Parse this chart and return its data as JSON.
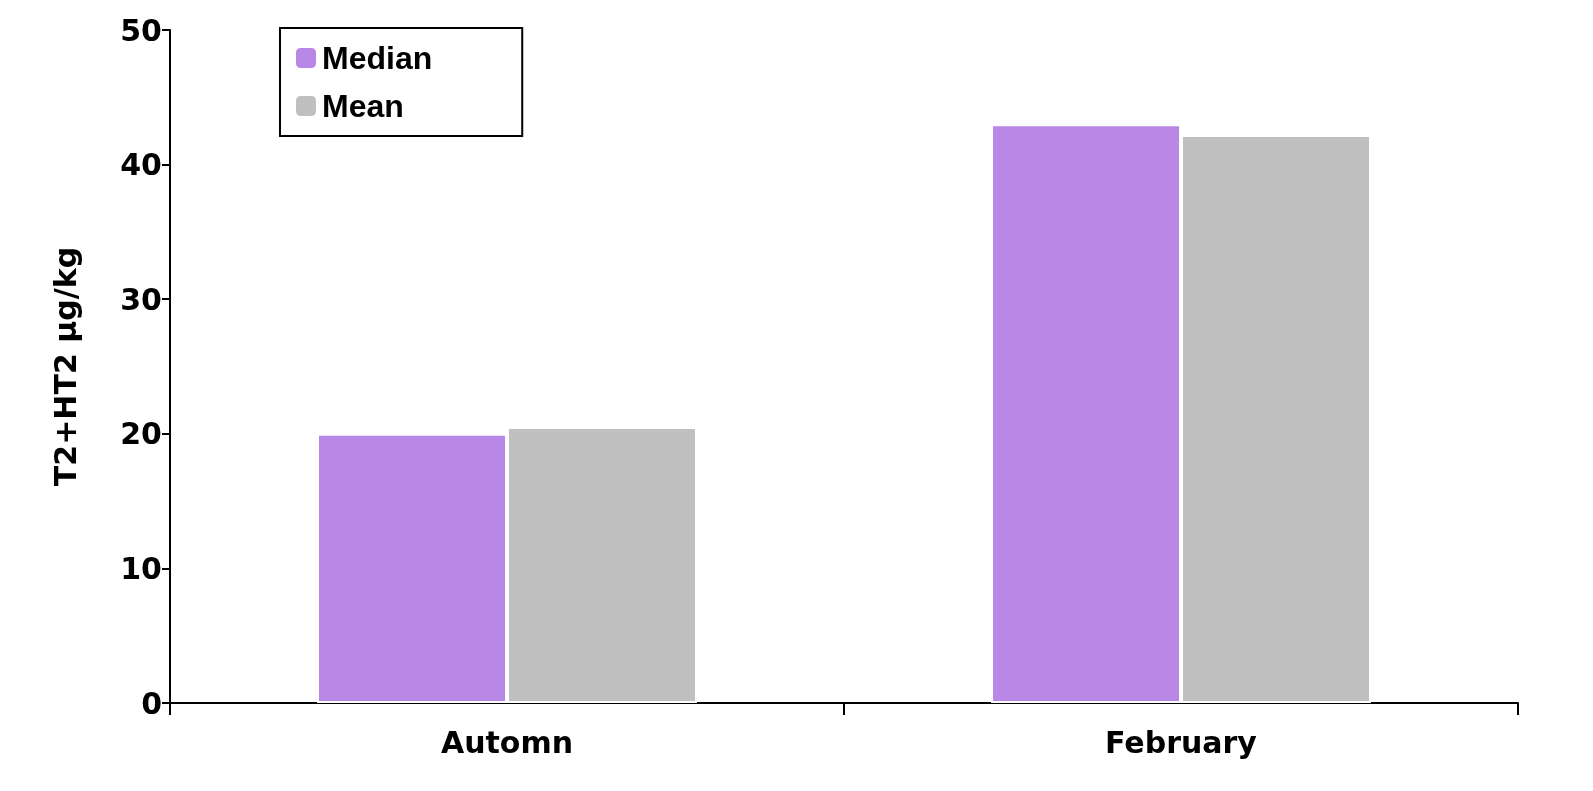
{
  "chart_data": {
    "type": "bar",
    "ylabel": "T2+HT2 µg/kg",
    "categories": [
      "Automn",
      "February"
    ],
    "series": [
      {
        "name": "Median",
        "color": "#b987e6",
        "values": [
          20,
          43
        ]
      },
      {
        "name": "Mean",
        "color": "#c0c0c0",
        "values": [
          20.5,
          42.2
        ]
      }
    ],
    "ylim": [
      0,
      50
    ],
    "yticks": [
      0,
      10,
      20,
      30,
      40,
      50
    ],
    "grid": false,
    "legend": "top left"
  }
}
